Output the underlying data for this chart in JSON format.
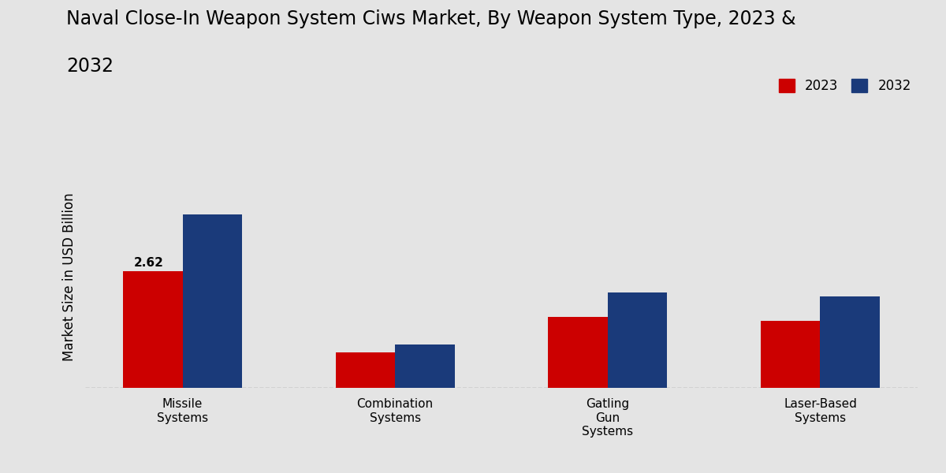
{
  "title_line1": "Naval Close-In Weapon System Ciws Market, By Weapon System Type, 2023 &",
  "title_line2": "2032",
  "ylabel": "Market Size in USD Billion",
  "categories": [
    "Missile\nSystems",
    "Combination\nSystems",
    "Gatling\nGun\nSystems",
    "Laser-Based\nSystems"
  ],
  "values_2023": [
    2.62,
    0.8,
    1.6,
    1.5
  ],
  "values_2032": [
    3.9,
    0.97,
    2.15,
    2.05
  ],
  "color_2023": "#cc0000",
  "color_2032": "#1a3a7a",
  "annotation_value": "2.62",
  "background_color": "#e4e4e4",
  "bar_width": 0.28,
  "legend_labels": [
    "2023",
    "2032"
  ],
  "title_fontsize": 17,
  "axis_label_fontsize": 12,
  "tick_fontsize": 11,
  "legend_fontsize": 12,
  "ylim_max": 5.0
}
